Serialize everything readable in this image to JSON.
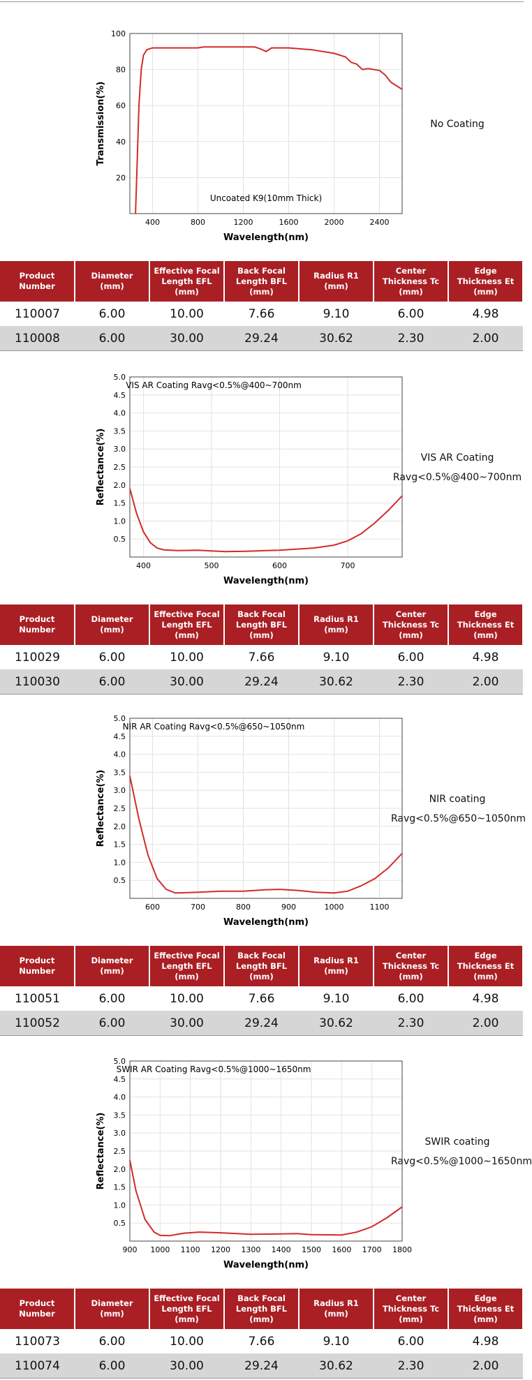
{
  "chart_data": [
    {
      "type": "line",
      "annotation": "Uncoated K9(10mm Thick)",
      "x_label": "Wavelength(nm)",
      "y_label": "Transmission(%)",
      "xlim": [
        200,
        2600
      ],
      "xticks": [
        400,
        800,
        1200,
        1600,
        2000,
        2400
      ],
      "ylim": [
        0,
        100
      ],
      "yticks": [
        20,
        40,
        60,
        80,
        100
      ],
      "grid": true,
      "color": "#d42a2a",
      "x": [
        250,
        265,
        280,
        300,
        320,
        350,
        400,
        800,
        850,
        1300,
        1350,
        1400,
        1450,
        1600,
        1800,
        2000,
        2100,
        2150,
        2200,
        2250,
        2300,
        2400,
        2450,
        2500,
        2600
      ],
      "values": [
        0,
        30,
        60,
        80,
        88,
        91,
        92,
        92,
        92.5,
        92.5,
        91.5,
        90,
        92,
        92,
        91,
        89,
        87,
        84,
        83,
        80,
        80.5,
        79.5,
        77,
        73,
        69
      ]
    },
    {
      "type": "line",
      "annotation": "VIS AR Coating Ravg<0.5%@400~700nm",
      "x_label": "Wavelength(nm)",
      "y_label": "Reflectance(%)",
      "xlim": [
        380,
        780
      ],
      "xticks": [
        400,
        500,
        600,
        700
      ],
      "ylim": [
        0,
        5
      ],
      "yticks": [
        0.5,
        {
          "value": 1,
          "label": "1.0"
        },
        1.5,
        {
          "value": 2,
          "label": "2.0"
        },
        2.5,
        {
          "value": 3,
          "label": "3.0"
        },
        3.5,
        {
          "value": 4,
          "label": "4.0"
        },
        4.5,
        {
          "value": 5,
          "label": "5.0"
        }
      ],
      "grid": true,
      "color": "#d42a2a",
      "x": [
        380,
        390,
        400,
        410,
        420,
        430,
        450,
        480,
        500,
        520,
        550,
        600,
        650,
        680,
        700,
        720,
        740,
        760,
        780
      ],
      "values": [
        1.9,
        1.2,
        0.7,
        0.4,
        0.25,
        0.2,
        0.18,
        0.19,
        0.17,
        0.15,
        0.16,
        0.19,
        0.25,
        0.33,
        0.45,
        0.65,
        0.95,
        1.3,
        1.7
      ]
    },
    {
      "type": "line",
      "annotation": "NIR AR Coating Ravg<0.5%@650~1050nm",
      "x_label": "Wavelength(nm)",
      "y_label": "Reflectance(%)",
      "xlim": [
        550,
        1150
      ],
      "xticks": [
        600,
        700,
        800,
        900,
        1000,
        1100
      ],
      "ylim": [
        0,
        5
      ],
      "yticks": [
        0.5,
        {
          "value": 1,
          "label": "1.0"
        },
        1.5,
        {
          "value": 2,
          "label": "2.0"
        },
        2.5,
        {
          "value": 3,
          "label": "3.0"
        },
        3.5,
        {
          "value": 4,
          "label": "4.0"
        },
        4.5,
        {
          "value": 5,
          "label": "5.0"
        }
      ],
      "grid": true,
      "color": "#d42a2a",
      "x": [
        550,
        570,
        590,
        610,
        630,
        650,
        700,
        750,
        800,
        850,
        880,
        920,
        960,
        1000,
        1030,
        1060,
        1090,
        1120,
        1150
      ],
      "values": [
        3.4,
        2.2,
        1.2,
        0.55,
        0.25,
        0.15,
        0.17,
        0.2,
        0.2,
        0.24,
        0.25,
        0.22,
        0.17,
        0.15,
        0.2,
        0.35,
        0.55,
        0.85,
        1.25
      ]
    },
    {
      "type": "line",
      "annotation": "SWIR AR Coating Ravg<0.5%@1000~1650nm",
      "x_label": "Wavelength(nm)",
      "y_label": "Reflectance(%)",
      "xlim": [
        900,
        1800
      ],
      "xticks": [
        900,
        1000,
        1100,
        1200,
        1300,
        1400,
        1500,
        1600,
        1700,
        1800
      ],
      "ylim": [
        0,
        5
      ],
      "yticks": [
        0.5,
        {
          "value": 1,
          "label": "1.0"
        },
        1.5,
        {
          "value": 2,
          "label": "2.0"
        },
        2.5,
        {
          "value": 3,
          "label": "3.0"
        },
        3.5,
        {
          "value": 4,
          "label": "4.0"
        },
        4.5,
        {
          "value": 5,
          "label": "5.0"
        }
      ],
      "grid": true,
      "color": "#d42a2a",
      "x": [
        900,
        920,
        950,
        980,
        1000,
        1030,
        1080,
        1130,
        1200,
        1300,
        1400,
        1450,
        1500,
        1600,
        1650,
        1700,
        1750,
        1800
      ],
      "values": [
        2.25,
        1.4,
        0.6,
        0.25,
        0.16,
        0.15,
        0.22,
        0.25,
        0.23,
        0.19,
        0.2,
        0.21,
        0.18,
        0.17,
        0.25,
        0.4,
        0.65,
        0.95
      ]
    }
  ],
  "side_labels": [
    [
      "No Coating"
    ],
    [
      "VIS AR Coating",
      "Ravg<0.5%@400~700nm"
    ],
    [
      "NIR coating",
      "Ravg<0.5%@650~1050nm"
    ],
    [
      "SWIR coating",
      "Ravg<0.5%@1000~1650nm"
    ]
  ],
  "tables": [
    {
      "header": [
        "Product Number",
        "Diameter (mm)",
        "Effective Focal Length EFL (mm)",
        "Back Focal Length BFL (mm)",
        "Radius R1 (mm)",
        "Center Thickness Tc (mm)",
        "Edge Thickness Et (mm)"
      ],
      "rows": [
        [
          "110007",
          "6.00",
          "10.00",
          "7.66",
          "9.10",
          "6.00",
          "4.98"
        ],
        [
          "110008",
          "6.00",
          "30.00",
          "29.24",
          "30.62",
          "2.30",
          "2.00"
        ]
      ]
    },
    {
      "header": [
        "Product Number",
        "Diameter (mm)",
        "Effective Focal Length EFL (mm)",
        "Back Focal Length BFL (mm)",
        "Radius R1 (mm)",
        "Center Thickness Tc (mm)",
        "Edge Thickness Et (mm)"
      ],
      "rows": [
        [
          "110029",
          "6.00",
          "10.00",
          "7.66",
          "9.10",
          "6.00",
          "4.98"
        ],
        [
          "110030",
          "6.00",
          "30.00",
          "29.24",
          "30.62",
          "2.30",
          "2.00"
        ]
      ]
    },
    {
      "header": [
        "Product Number",
        "Diameter (mm)",
        "Effective Focal Length EFL (mm)",
        "Back Focal Length BFL (mm)",
        "Radius R1 (mm)",
        "Center Thickness Tc (mm)",
        "Edge Thickness Et (mm)"
      ],
      "rows": [
        [
          "110051",
          "6.00",
          "10.00",
          "7.66",
          "9.10",
          "6.00",
          "4.98"
        ],
        [
          "110052",
          "6.00",
          "30.00",
          "29.24",
          "30.62",
          "2.30",
          "2.00"
        ]
      ]
    },
    {
      "header": [
        "Product Number",
        "Diameter (mm)",
        "Effective Focal Length EFL (mm)",
        "Back Focal Length BFL (mm)",
        "Radius R1 (mm)",
        "Center Thickness Tc (mm)",
        "Edge Thickness Et (mm)"
      ],
      "rows": [
        [
          "110073",
          "6.00",
          "10.00",
          "7.66",
          "9.10",
          "6.00",
          "4.98"
        ],
        [
          "110074",
          "6.00",
          "30.00",
          "29.24",
          "30.62",
          "2.30",
          "2.00"
        ]
      ]
    }
  ]
}
